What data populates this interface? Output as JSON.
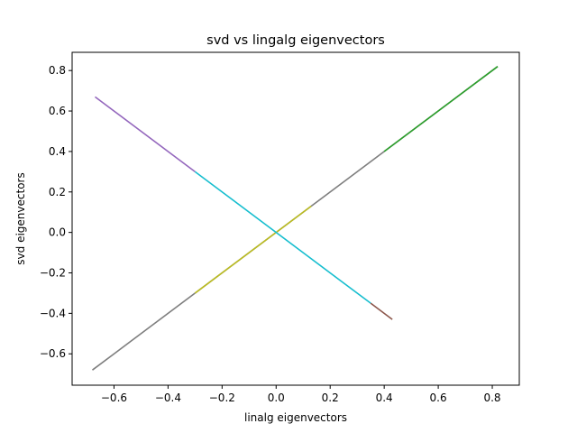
{
  "chart_data": {
    "type": "line",
    "title": "svd vs lingalg eigenvectors",
    "xlabel": "linalg eigenvectors",
    "ylabel": "svd eigenvectors",
    "xlim": [
      -0.755,
      0.9
    ],
    "ylim": [
      -0.755,
      0.89
    ],
    "xticks": [
      -0.6,
      -0.4,
      -0.2,
      0.0,
      0.2,
      0.4,
      0.6,
      0.8
    ],
    "xtick_labels": [
      "−0.6",
      "−0.4",
      "−0.2",
      "0.0",
      "0.2",
      "0.4",
      "0.6",
      "0.8"
    ],
    "yticks": [
      -0.6,
      -0.4,
      -0.2,
      0.0,
      0.2,
      0.4,
      0.6,
      0.8
    ],
    "ytick_labels": [
      "−0.6",
      "−0.4",
      "−0.2",
      "0.0",
      "0.2",
      "0.4",
      "0.6",
      "0.8"
    ],
    "grid": false,
    "series": [
      {
        "color": "#7f7f7f",
        "x": [
          -0.68,
          0.82
        ],
        "y": [
          -0.68,
          0.82
        ]
      },
      {
        "color": "#bcbd22",
        "x": [
          -0.3,
          0.13
        ],
        "y": [
          -0.3,
          0.13
        ]
      },
      {
        "color": "#2ca02c",
        "x": [
          0.4,
          0.82
        ],
        "y": [
          0.4,
          0.82
        ]
      },
      {
        "color": "#9467bd",
        "x": [
          -0.67,
          -0.3
        ],
        "y": [
          0.67,
          0.3
        ]
      },
      {
        "color": "#17becf",
        "x": [
          -0.3,
          0.35
        ],
        "y": [
          0.3,
          -0.35
        ]
      },
      {
        "color": "#8c564b",
        "x": [
          0.35,
          0.43
        ],
        "y": [
          -0.35,
          -0.43
        ]
      }
    ]
  }
}
